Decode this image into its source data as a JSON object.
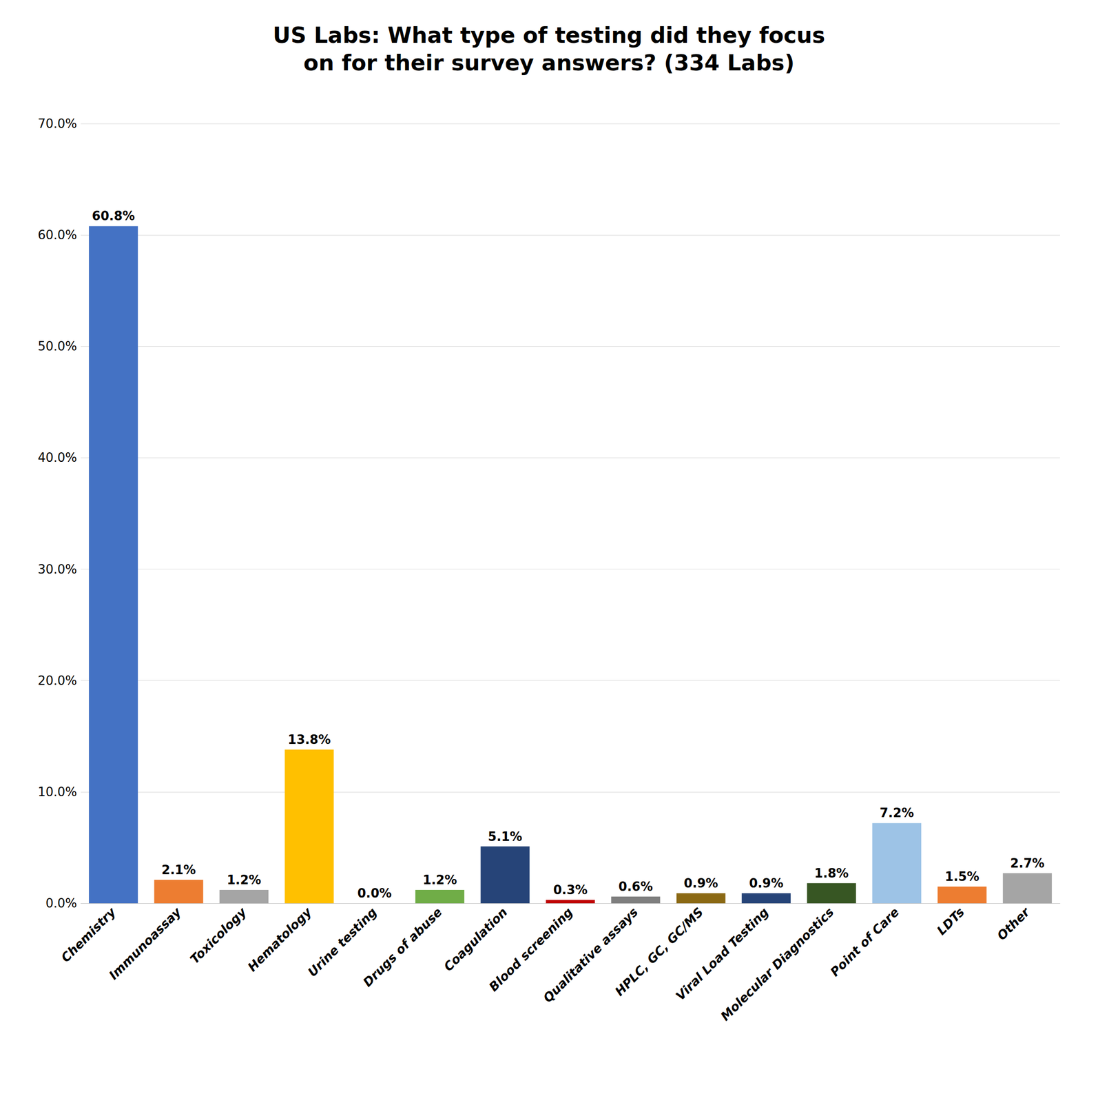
{
  "chart_data": {
    "type": "bar",
    "title": "US Labs: What type of testing did they focus\non for their survey answers? (334 Labs)",
    "categories": [
      "Chemistry",
      "Immunoassay",
      "Toxicology",
      "Hematology",
      "Urine testing",
      "Drugs of abuse",
      "Coagulation",
      "Blood screening",
      "Qualitative assays",
      "HPLC, GC, GC/MS",
      "Viral Load Testing",
      "Molecular Diagnostics",
      "Point of Care",
      "LDTs",
      "Other"
    ],
    "values": [
      60.8,
      2.1,
      1.2,
      13.8,
      0.0,
      1.2,
      5.1,
      0.3,
      0.6,
      0.9,
      0.9,
      1.8,
      7.2,
      1.5,
      2.7
    ],
    "value_labels": [
      "60.8%",
      "2.1%",
      "1.2%",
      "13.8%",
      "0.0%",
      "1.2%",
      "5.1%",
      "0.3%",
      "0.6%",
      "0.9%",
      "0.9%",
      "1.8%",
      "7.2%",
      "1.5%",
      "2.7%"
    ],
    "colors": [
      "#4472C4",
      "#ED7D31",
      "#A5A5A5",
      "#FFC000",
      "#4472C4",
      "#70AD47",
      "#264478",
      "#C00000",
      "#7F7F7F",
      "#8B6914",
      "#264478",
      "#375623",
      "#9DC3E6",
      "#ED7D31",
      "#A5A5A5"
    ],
    "ylim": [
      0,
      70.0
    ],
    "yticks": [
      {
        "value": 0.0,
        "label": "0.0%"
      },
      {
        "value": 10.0,
        "label": "10.0%"
      },
      {
        "value": 20.0,
        "label": "20.0%"
      },
      {
        "value": 30.0,
        "label": "30.0%"
      },
      {
        "value": 40.0,
        "label": "40.0%"
      },
      {
        "value": 50.0,
        "label": "50.0%"
      },
      {
        "value": 60.0,
        "label": "60.0%"
      },
      {
        "value": 70.0,
        "label": "70.0%"
      }
    ],
    "grid": true,
    "data_labels": true
  }
}
